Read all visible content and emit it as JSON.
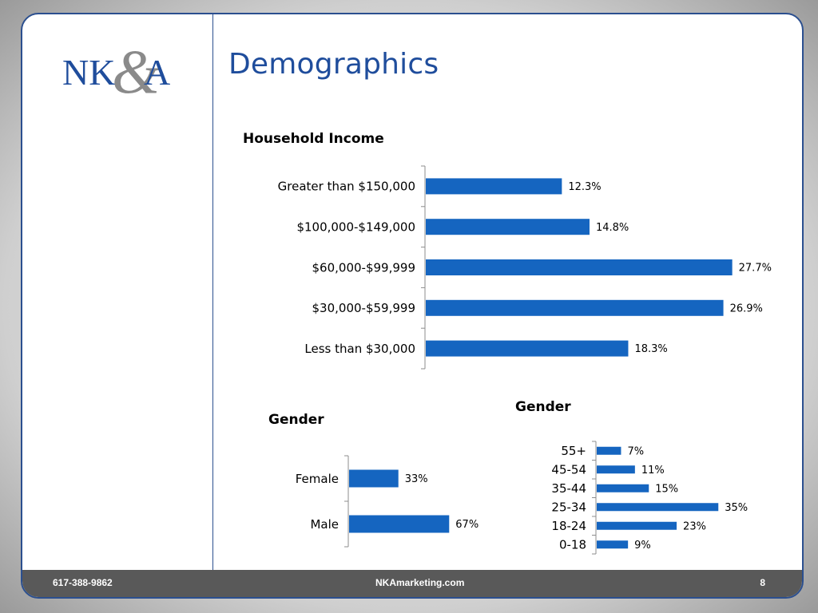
{
  "slide": {
    "title": "Demographics",
    "logo_text": "NK&A",
    "footer": {
      "phone": "617-388-9862",
      "website": "NKAmarketing.com",
      "page": "8"
    }
  },
  "colors": {
    "bar": "#1565c0",
    "brand": "#1f4d9c",
    "axis": "#8c8c8c"
  },
  "chart_data": [
    {
      "type": "bar",
      "orientation": "horizontal",
      "title": "Household Income",
      "categories": [
        "Greater than $150,000",
        "$100,000-$149,000",
        "$60,000-$99,999",
        "$30,000-$59,999",
        "Less than $30,000"
      ],
      "values": [
        12.3,
        14.8,
        27.7,
        26.9,
        18.3
      ],
      "labels": [
        "12.3%",
        "14.8%",
        "27.7%",
        "26.9%",
        "18.3%"
      ],
      "unit": "%",
      "grid": false
    },
    {
      "type": "bar",
      "orientation": "horizontal",
      "title": "Gender",
      "categories": [
        "Female",
        "Male"
      ],
      "values": [
        33,
        67
      ],
      "labels": [
        "33%",
        "67%"
      ],
      "unit": "%",
      "grid": false
    },
    {
      "type": "bar",
      "orientation": "horizontal",
      "title": "Gender",
      "categories": [
        "55+",
        "45-54",
        "35-44",
        "25-34",
        "18-24",
        "0-18"
      ],
      "values": [
        7,
        11,
        15,
        35,
        23,
        9
      ],
      "labels": [
        "7%",
        "11%",
        "15%",
        "35%",
        "23%",
        "9%"
      ],
      "unit": "%",
      "grid": false
    }
  ]
}
